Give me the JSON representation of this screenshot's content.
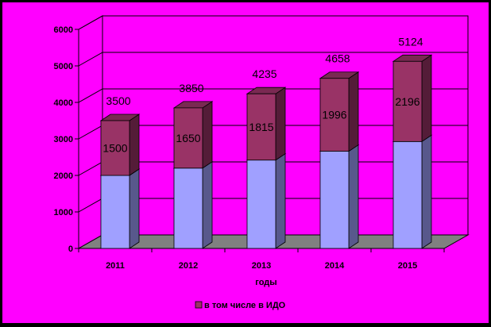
{
  "chart_data": {
    "type": "bar",
    "stacked": true,
    "three_d": true,
    "categories": [
      "2011",
      "2012",
      "2013",
      "2014",
      "2015"
    ],
    "totals": [
      3500,
      3850,
      4235,
      4658,
      5124
    ],
    "series": [
      {
        "values": [
          2000,
          2200,
          2420,
          2662,
          2928
        ],
        "color": "#a0a0ff"
      },
      {
        "name": "в том числе в ИДО",
        "values": [
          1500,
          1650,
          1815,
          1996,
          2196
        ],
        "color": "#993366"
      }
    ],
    "xlabel": "годы",
    "ylim": [
      0,
      6000
    ],
    "yticks": [
      0,
      1000,
      2000,
      3000,
      4000,
      5000,
      6000
    ],
    "grid": true,
    "legend_position": "bottom",
    "colors": {
      "background": "#ff00ff",
      "frame": "#000000",
      "floor": "#808080",
      "gridline": "#000000"
    }
  }
}
